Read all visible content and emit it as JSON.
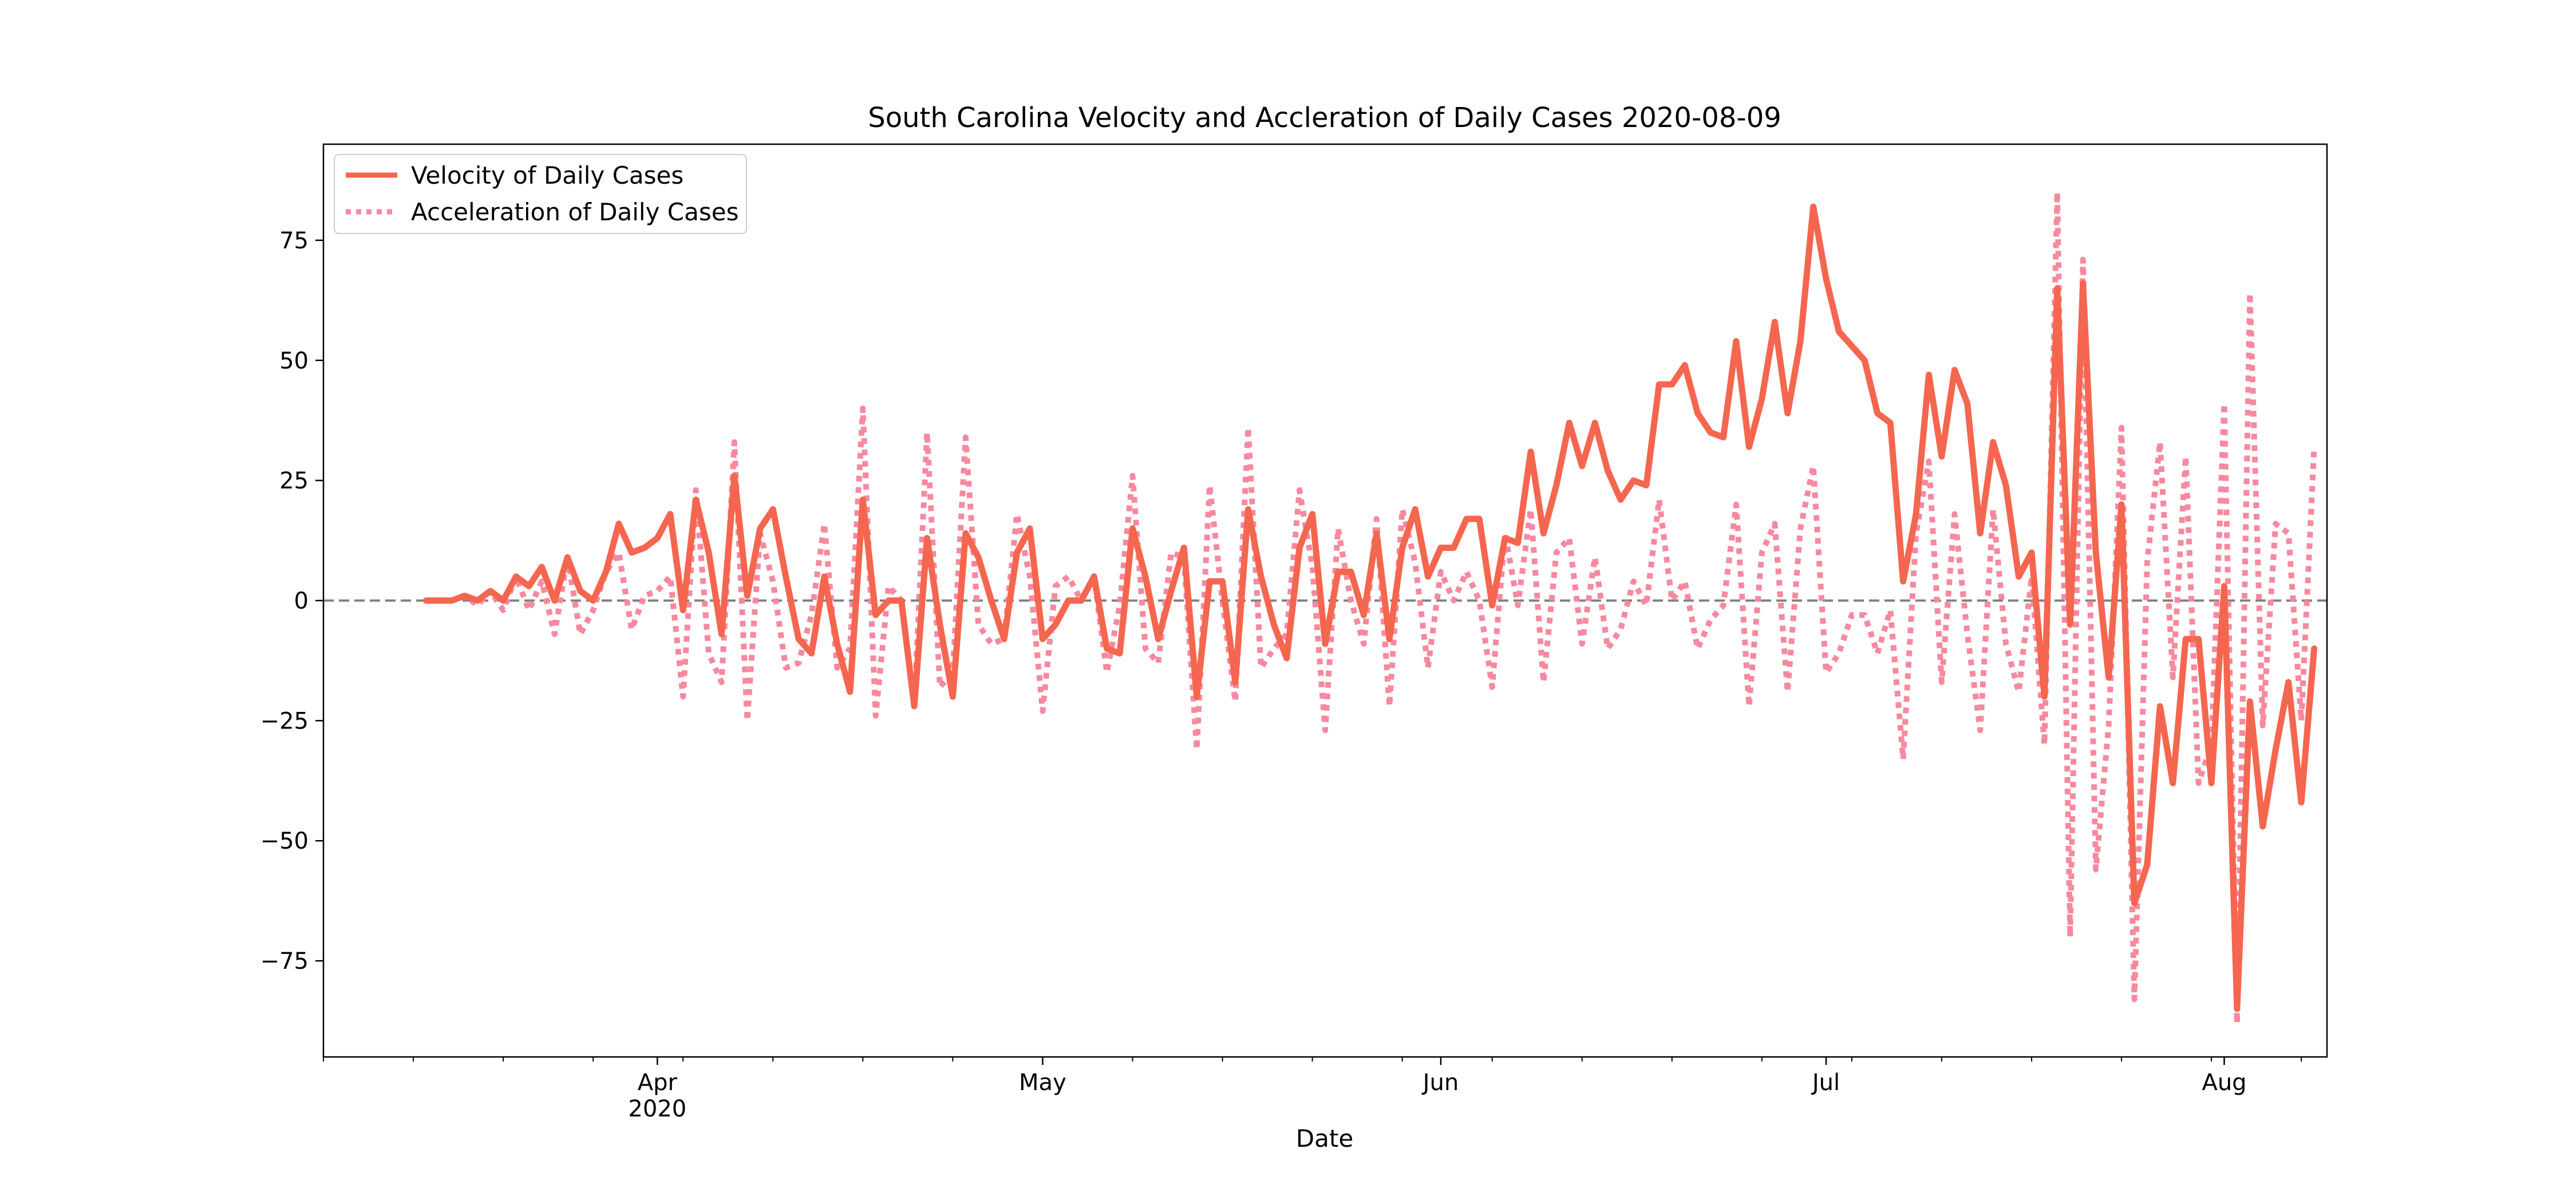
{
  "chart_data": {
    "type": "line",
    "title": "South Carolina Velocity and Accleration of Daily Cases 2020-08-09",
    "xlabel": "Date",
    "ylabel": "",
    "x_start": "2020-03-06",
    "x_end": "2020-08-09",
    "xlim": [
      "2020-03-06",
      "2020-08-09"
    ],
    "ylim": [
      -95,
      95
    ],
    "yticks": [
      -75,
      -50,
      -25,
      0,
      25,
      50,
      75
    ],
    "xticks": [
      {
        "date": "2020-04-01",
        "label": "Apr",
        "sublabel": "2020"
      },
      {
        "date": "2020-05-01",
        "label": "May",
        "sublabel": ""
      },
      {
        "date": "2020-06-01",
        "label": "Jun",
        "sublabel": ""
      },
      {
        "date": "2020-07-01",
        "label": "Jul",
        "sublabel": ""
      },
      {
        "date": "2020-08-01",
        "label": "Aug",
        "sublabel": ""
      }
    ],
    "grid": false,
    "legend_position": "upper-left",
    "zero_line": {
      "y": 0,
      "color": "#808080",
      "style": "dashed"
    },
    "series": [
      {
        "name": "Velocity of Daily Cases",
        "color": "#f4664f",
        "style": "solid",
        "start": "2020-03-14",
        "values": [
          0,
          0,
          0,
          1,
          0,
          2,
          0,
          5,
          3,
          7,
          0,
          9,
          2,
          0,
          6,
          16,
          10,
          11,
          13,
          18,
          -2,
          21,
          10,
          -7,
          26,
          1,
          15,
          19,
          5,
          -8,
          -11,
          5,
          -9,
          -19,
          21,
          -3,
          0,
          0,
          -22,
          13,
          -5,
          -20,
          14,
          9,
          0,
          -8,
          10,
          15,
          -8,
          -5,
          0,
          0,
          5,
          -10,
          -11,
          15,
          5,
          -8,
          2,
          11,
          -20,
          4,
          4,
          -17,
          19,
          5,
          -5,
          -12,
          11,
          18,
          -9,
          6,
          6,
          -3,
          14,
          -8,
          11,
          19,
          5,
          11,
          11,
          17,
          17,
          -1,
          13,
          12,
          31,
          14,
          24,
          37,
          28,
          37,
          27,
          21,
          25,
          24,
          45,
          45,
          49,
          39,
          35,
          34,
          54,
          32,
          42,
          58,
          39,
          54,
          82,
          67,
          56,
          53,
          50,
          39,
          37,
          4,
          18,
          47,
          30,
          48,
          41,
          14,
          33,
          24,
          5,
          10,
          -20,
          65,
          -5,
          66,
          10,
          -16,
          20,
          -63,
          -55,
          -22,
          -38,
          -8,
          -8,
          -38,
          3,
          -85,
          -21,
          -47,
          -31,
          -17,
          -42,
          -10
        ]
      },
      {
        "name": "Acceleration of Daily Cases",
        "color": "#f7899f",
        "style": "dotted",
        "start": "2020-03-15",
        "values": [
          0,
          0,
          1,
          -1,
          2,
          -2,
          5,
          -2,
          4,
          -7,
          9,
          -7,
          -2,
          6,
          10,
          -6,
          1,
          2,
          5,
          -20,
          23,
          -11,
          -17,
          33,
          -25,
          14,
          4,
          -14,
          -13,
          -3,
          16,
          -14,
          -10,
          40,
          -24,
          3,
          0,
          -22,
          35,
          -18,
          -15,
          34,
          -5,
          -9,
          -8,
          18,
          5,
          -23,
          3,
          5,
          0,
          5,
          -15,
          -1,
          26,
          -10,
          -13,
          10,
          9,
          -31,
          24,
          0,
          -21,
          36,
          -14,
          -10,
          -7,
          23,
          7,
          -27,
          15,
          0,
          -9,
          17,
          -22,
          19,
          8,
          -14,
          6,
          0,
          6,
          0,
          -18,
          14,
          -1,
          19,
          -17,
          10,
          13,
          -9,
          9,
          -10,
          -6,
          4,
          -1,
          21,
          0,
          4,
          -10,
          -4,
          -1,
          20,
          -22,
          10,
          16,
          -19,
          15,
          28,
          -15,
          -11,
          -3,
          -3,
          -11,
          -2,
          -33,
          14,
          29,
          -17,
          18,
          -7,
          -27,
          19,
          -9,
          -19,
          5,
          -30,
          85,
          -70,
          71,
          -56,
          -26,
          36,
          -83,
          8,
          33,
          -16,
          30,
          -38,
          -30,
          41,
          -88,
          64,
          -26,
          16,
          14,
          -25,
          32
        ]
      }
    ]
  }
}
